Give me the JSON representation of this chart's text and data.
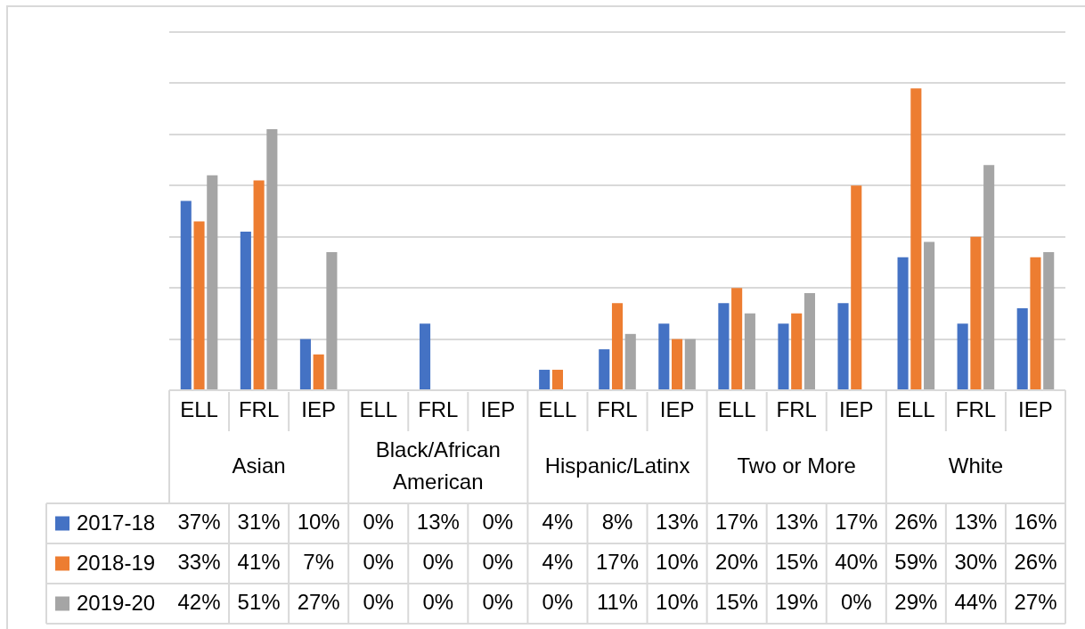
{
  "chart_data": {
    "type": "bar",
    "categories": [
      "ELL",
      "FRL",
      "IEP",
      "ELL",
      "FRL",
      "IEP",
      "ELL",
      "FRL",
      "IEP",
      "ELL",
      "FRL",
      "IEP",
      "ELL",
      "FRL",
      "IEP"
    ],
    "annotations": [
      "Asian",
      "Black/African American",
      "Hispanic/Latinx",
      "Two or More",
      "White"
    ],
    "series": [
      {
        "name": "2017-18",
        "color": "#4472c4",
        "values": [
          37,
          31,
          10,
          0,
          13,
          0,
          4,
          8,
          13,
          17,
          13,
          17,
          26,
          13,
          16
        ],
        "value_labels": [
          "37%",
          "31%",
          "10%",
          "0%",
          "13%",
          "0%",
          "4%",
          "8%",
          "13%",
          "17%",
          "13%",
          "17%",
          "26%",
          "13%",
          "16%"
        ]
      },
      {
        "name": "2018-19",
        "color": "#ed7d31",
        "values": [
          33,
          41,
          7,
          0,
          0,
          0,
          4,
          17,
          10,
          20,
          15,
          40,
          59,
          30,
          26
        ],
        "value_labels": [
          "33%",
          "41%",
          "7%",
          "0%",
          "0%",
          "0%",
          "4%",
          "17%",
          "10%",
          "20%",
          "15%",
          "40%",
          "59%",
          "30%",
          "26%"
        ]
      },
      {
        "name": "2019-20",
        "color": "#a5a5a5",
        "values": [
          42,
          51,
          27,
          0,
          0,
          0,
          0,
          11,
          10,
          15,
          19,
          0,
          29,
          44,
          27
        ],
        "value_labels": [
          "42%",
          "51%",
          "27%",
          "0%",
          "0%",
          "0%",
          "0%",
          "11%",
          "10%",
          "15%",
          "19%",
          "0%",
          "29%",
          "44%",
          "27%"
        ]
      }
    ],
    "ylim": [
      0,
      70
    ],
    "yticks": [
      {
        "value": 0,
        "label": null
      },
      {
        "value": 10,
        "label": null
      },
      {
        "value": 20,
        "label": null
      },
      {
        "value": 30,
        "label": null
      },
      {
        "value": 40,
        "label": null
      },
      {
        "value": 50,
        "label": null
      },
      {
        "value": 60,
        "label": null
      },
      {
        "value": 70,
        "label": null
      }
    ],
    "grid": "y",
    "legend": "bottom",
    "tick_labels": "x"
  }
}
